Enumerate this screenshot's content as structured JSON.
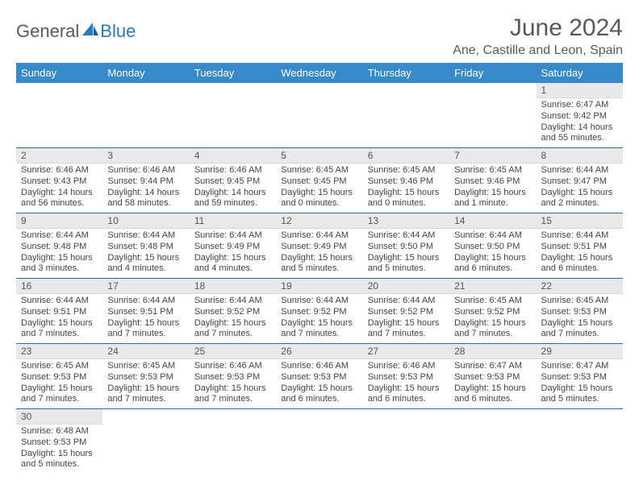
{
  "brand": {
    "name1": "General",
    "name2": "Blue"
  },
  "colors": {
    "header_bg": "#3789c7",
    "header_text": "#ffffff",
    "row_divider": "#2b6aa3",
    "daynum_bg": "#e9e9e9",
    "text": "#444444",
    "title_text": "#595959",
    "brand_blue": "#2a7ab8"
  },
  "title": "June 2024",
  "location": "Ane, Castille and Leon, Spain",
  "day_headers": [
    "Sunday",
    "Monday",
    "Tuesday",
    "Wednesday",
    "Thursday",
    "Friday",
    "Saturday"
  ],
  "weeks": [
    [
      {
        "empty": true
      },
      {
        "empty": true
      },
      {
        "empty": true
      },
      {
        "empty": true
      },
      {
        "empty": true
      },
      {
        "empty": true
      },
      {
        "day": "1",
        "sunrise": "Sunrise: 6:47 AM",
        "sunset": "Sunset: 9:42 PM",
        "daylight1": "Daylight: 14 hours",
        "daylight2": "and 55 minutes."
      }
    ],
    [
      {
        "day": "2",
        "sunrise": "Sunrise: 6:46 AM",
        "sunset": "Sunset: 9:43 PM",
        "daylight1": "Daylight: 14 hours",
        "daylight2": "and 56 minutes."
      },
      {
        "day": "3",
        "sunrise": "Sunrise: 6:46 AM",
        "sunset": "Sunset: 9:44 PM",
        "daylight1": "Daylight: 14 hours",
        "daylight2": "and 58 minutes."
      },
      {
        "day": "4",
        "sunrise": "Sunrise: 6:46 AM",
        "sunset": "Sunset: 9:45 PM",
        "daylight1": "Daylight: 14 hours",
        "daylight2": "and 59 minutes."
      },
      {
        "day": "5",
        "sunrise": "Sunrise: 6:45 AM",
        "sunset": "Sunset: 9:45 PM",
        "daylight1": "Daylight: 15 hours",
        "daylight2": "and 0 minutes."
      },
      {
        "day": "6",
        "sunrise": "Sunrise: 6:45 AM",
        "sunset": "Sunset: 9:46 PM",
        "daylight1": "Daylight: 15 hours",
        "daylight2": "and 0 minutes."
      },
      {
        "day": "7",
        "sunrise": "Sunrise: 6:45 AM",
        "sunset": "Sunset: 9:46 PM",
        "daylight1": "Daylight: 15 hours",
        "daylight2": "and 1 minute."
      },
      {
        "day": "8",
        "sunrise": "Sunrise: 6:44 AM",
        "sunset": "Sunset: 9:47 PM",
        "daylight1": "Daylight: 15 hours",
        "daylight2": "and 2 minutes."
      }
    ],
    [
      {
        "day": "9",
        "sunrise": "Sunrise: 6:44 AM",
        "sunset": "Sunset: 9:48 PM",
        "daylight1": "Daylight: 15 hours",
        "daylight2": "and 3 minutes."
      },
      {
        "day": "10",
        "sunrise": "Sunrise: 6:44 AM",
        "sunset": "Sunset: 9:48 PM",
        "daylight1": "Daylight: 15 hours",
        "daylight2": "and 4 minutes."
      },
      {
        "day": "11",
        "sunrise": "Sunrise: 6:44 AM",
        "sunset": "Sunset: 9:49 PM",
        "daylight1": "Daylight: 15 hours",
        "daylight2": "and 4 minutes."
      },
      {
        "day": "12",
        "sunrise": "Sunrise: 6:44 AM",
        "sunset": "Sunset: 9:49 PM",
        "daylight1": "Daylight: 15 hours",
        "daylight2": "and 5 minutes."
      },
      {
        "day": "13",
        "sunrise": "Sunrise: 6:44 AM",
        "sunset": "Sunset: 9:50 PM",
        "daylight1": "Daylight: 15 hours",
        "daylight2": "and 5 minutes."
      },
      {
        "day": "14",
        "sunrise": "Sunrise: 6:44 AM",
        "sunset": "Sunset: 9:50 PM",
        "daylight1": "Daylight: 15 hours",
        "daylight2": "and 6 minutes."
      },
      {
        "day": "15",
        "sunrise": "Sunrise: 6:44 AM",
        "sunset": "Sunset: 9:51 PM",
        "daylight1": "Daylight: 15 hours",
        "daylight2": "and 6 minutes."
      }
    ],
    [
      {
        "day": "16",
        "sunrise": "Sunrise: 6:44 AM",
        "sunset": "Sunset: 9:51 PM",
        "daylight1": "Daylight: 15 hours",
        "daylight2": "and 7 minutes."
      },
      {
        "day": "17",
        "sunrise": "Sunrise: 6:44 AM",
        "sunset": "Sunset: 9:51 PM",
        "daylight1": "Daylight: 15 hours",
        "daylight2": "and 7 minutes."
      },
      {
        "day": "18",
        "sunrise": "Sunrise: 6:44 AM",
        "sunset": "Sunset: 9:52 PM",
        "daylight1": "Daylight: 15 hours",
        "daylight2": "and 7 minutes."
      },
      {
        "day": "19",
        "sunrise": "Sunrise: 6:44 AM",
        "sunset": "Sunset: 9:52 PM",
        "daylight1": "Daylight: 15 hours",
        "daylight2": "and 7 minutes."
      },
      {
        "day": "20",
        "sunrise": "Sunrise: 6:44 AM",
        "sunset": "Sunset: 9:52 PM",
        "daylight1": "Daylight: 15 hours",
        "daylight2": "and 7 minutes."
      },
      {
        "day": "21",
        "sunrise": "Sunrise: 6:45 AM",
        "sunset": "Sunset: 9:52 PM",
        "daylight1": "Daylight: 15 hours",
        "daylight2": "and 7 minutes."
      },
      {
        "day": "22",
        "sunrise": "Sunrise: 6:45 AM",
        "sunset": "Sunset: 9:53 PM",
        "daylight1": "Daylight: 15 hours",
        "daylight2": "and 7 minutes."
      }
    ],
    [
      {
        "day": "23",
        "sunrise": "Sunrise: 6:45 AM",
        "sunset": "Sunset: 9:53 PM",
        "daylight1": "Daylight: 15 hours",
        "daylight2": "and 7 minutes."
      },
      {
        "day": "24",
        "sunrise": "Sunrise: 6:45 AM",
        "sunset": "Sunset: 9:53 PM",
        "daylight1": "Daylight: 15 hours",
        "daylight2": "and 7 minutes."
      },
      {
        "day": "25",
        "sunrise": "Sunrise: 6:46 AM",
        "sunset": "Sunset: 9:53 PM",
        "daylight1": "Daylight: 15 hours",
        "daylight2": "and 7 minutes."
      },
      {
        "day": "26",
        "sunrise": "Sunrise: 6:46 AM",
        "sunset": "Sunset: 9:53 PM",
        "daylight1": "Daylight: 15 hours",
        "daylight2": "and 6 minutes."
      },
      {
        "day": "27",
        "sunrise": "Sunrise: 6:46 AM",
        "sunset": "Sunset: 9:53 PM",
        "daylight1": "Daylight: 15 hours",
        "daylight2": "and 6 minutes."
      },
      {
        "day": "28",
        "sunrise": "Sunrise: 6:47 AM",
        "sunset": "Sunset: 9:53 PM",
        "daylight1": "Daylight: 15 hours",
        "daylight2": "and 6 minutes."
      },
      {
        "day": "29",
        "sunrise": "Sunrise: 6:47 AM",
        "sunset": "Sunset: 9:53 PM",
        "daylight1": "Daylight: 15 hours",
        "daylight2": "and 5 minutes."
      }
    ],
    [
      {
        "day": "30",
        "sunrise": "Sunrise: 6:48 AM",
        "sunset": "Sunset: 9:53 PM",
        "daylight1": "Daylight: 15 hours",
        "daylight2": "and 5 minutes."
      },
      {
        "empty": true
      },
      {
        "empty": true
      },
      {
        "empty": true
      },
      {
        "empty": true
      },
      {
        "empty": true
      },
      {
        "empty": true
      }
    ]
  ]
}
